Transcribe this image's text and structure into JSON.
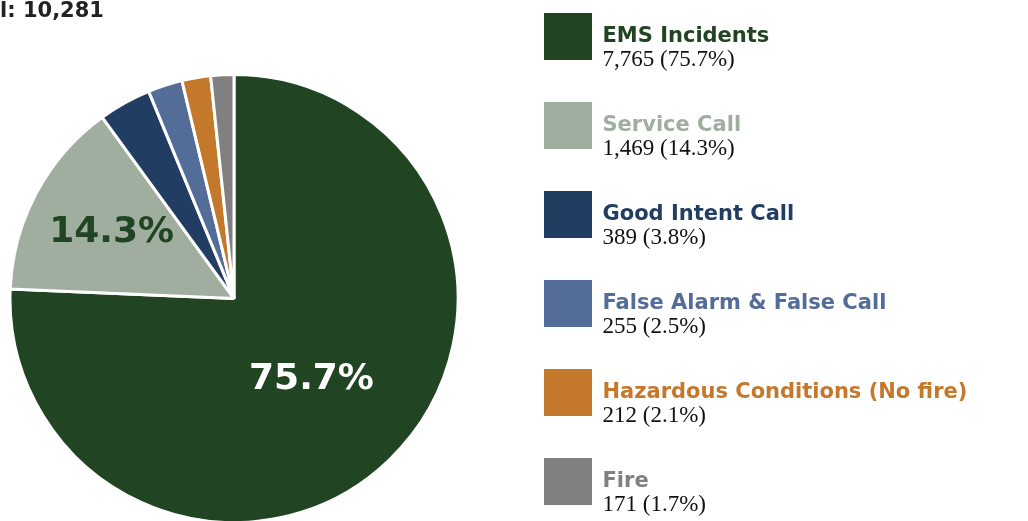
{
  "chart_data": {
    "type": "pie",
    "title": "l: 10,281",
    "categories": [
      "EMS Incidents",
      "Service Call",
      "Good Intent Call",
      "False Alarm & False Call",
      "Hazardous Conditions (No fire)",
      "Fire"
    ],
    "values": [
      7765,
      1469,
      389,
      255,
      212,
      171
    ],
    "colors": [
      "#214423",
      "#a0ae9f",
      "#213d62",
      "#536c98",
      "#c4782b",
      "#808080"
    ],
    "value_labels": [
      "7,765 (75.7%)",
      "1,469 (14.3%)",
      "389 (3.8%)",
      "255 (2.5%)",
      "212 (2.1%)",
      "171 (1.7%)"
    ],
    "annotations": [
      "75.7%",
      "14.3%"
    ],
    "legend": "right"
  }
}
